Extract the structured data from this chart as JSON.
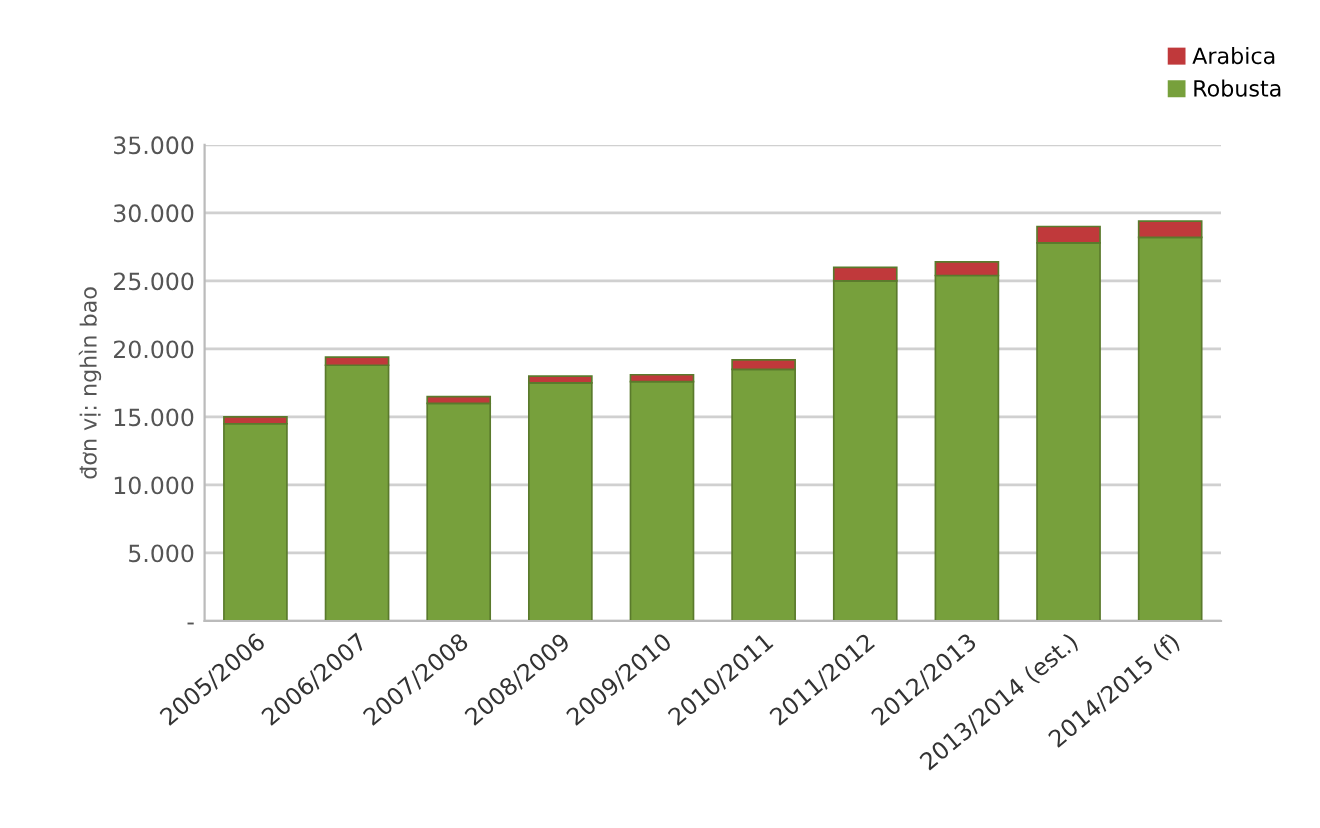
{
  "chart_data": {
    "type": "bar",
    "stacked": true,
    "ylabel": "đơn vị: nghìn bao",
    "categories": [
      "2005/2006",
      "2006/2007",
      "2007/2008",
      "2008/2009",
      "2009/2010",
      "2010/2011",
      "2011/2012",
      "2012/2013",
      "2013/2014 (est.)",
      "2014/2015 (f)"
    ],
    "series": [
      {
        "name": "Robusta",
        "color": "#77a03c",
        "values": [
          14500,
          18800,
          16000,
          17500,
          17600,
          18500,
          25000,
          25400,
          27800,
          28200
        ]
      },
      {
        "name": "Arabica",
        "color": "#c0393b",
        "values": [
          500,
          600,
          500,
          500,
          500,
          700,
          1000,
          1000,
          1200,
          1200
        ]
      }
    ],
    "ylim": [
      0,
      35000
    ],
    "yticks": [
      {
        "value": 0,
        "label": "-"
      },
      {
        "value": 5000,
        "label": "5.000"
      },
      {
        "value": 10000,
        "label": "10.000"
      },
      {
        "value": 15000,
        "label": "15.000"
      },
      {
        "value": 20000,
        "label": "20.000"
      },
      {
        "value": 25000,
        "label": "25.000"
      },
      {
        "value": 30000,
        "label": "30.000"
      },
      {
        "value": 35000,
        "label": "35.000"
      }
    ],
    "grid": "y",
    "legend": "top right"
  }
}
